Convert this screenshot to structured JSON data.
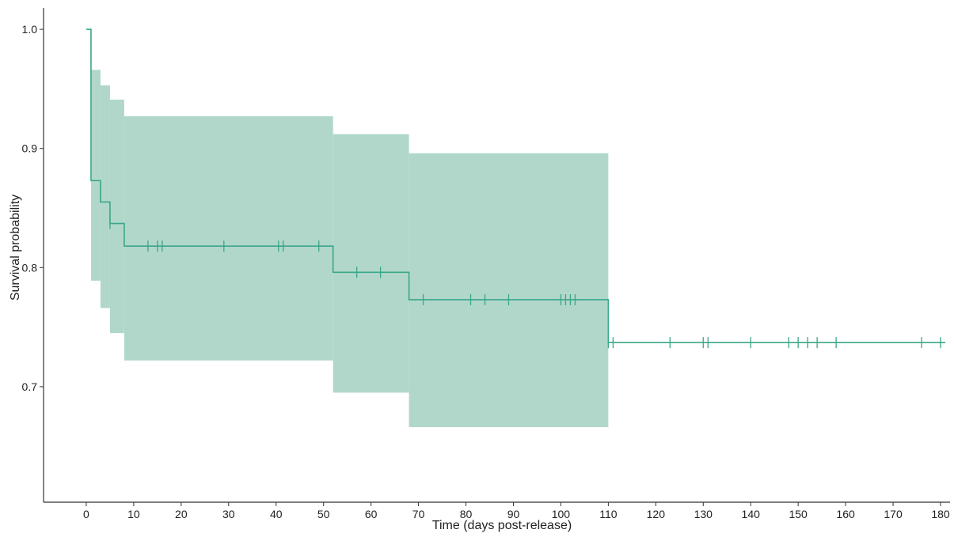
{
  "chart_data": {
    "type": "line",
    "subtype": "kaplan-meier survival curve with confidence band",
    "xlabel": "Time (days post-release)",
    "ylabel": "Survival probability",
    "xlim": [
      -9,
      182
    ],
    "ylim": [
      0.603,
      1.018
    ],
    "x_ticks": [
      0,
      10,
      20,
      30,
      40,
      50,
      60,
      70,
      80,
      90,
      100,
      110,
      120,
      130,
      140,
      150,
      160,
      170,
      180
    ],
    "y_ticks": [
      0.7,
      0.8,
      0.9,
      1.0
    ],
    "y_tick_labels": [
      "0.7",
      "0.8",
      "0.9",
      "1.0"
    ],
    "grid": false,
    "legend": "none",
    "colors": {
      "line": "#3aa688",
      "band": "#b1d7cb",
      "axis": "#333333"
    },
    "series": [
      {
        "survival_steps": [
          {
            "x": 0,
            "y": 1.0
          },
          {
            "x": 1,
            "y": 0.873
          },
          {
            "x": 3,
            "y": 0.855
          },
          {
            "x": 5,
            "y": 0.837
          },
          {
            "x": 8,
            "y": 0.818
          },
          {
            "x": 52,
            "y": 0.796
          },
          {
            "x": 68,
            "y": 0.773
          },
          {
            "x": 110,
            "y": 0.737
          }
        ],
        "end_x": 181,
        "confidence_band": [
          {
            "x0": 1,
            "x1": 3,
            "lower": 0.789,
            "upper": 0.966
          },
          {
            "x0": 3,
            "x1": 5,
            "lower": 0.766,
            "upper": 0.953
          },
          {
            "x0": 5,
            "x1": 8,
            "lower": 0.745,
            "upper": 0.941
          },
          {
            "x0": 8,
            "x1": 52,
            "lower": 0.722,
            "upper": 0.927
          },
          {
            "x0": 52,
            "x1": 68,
            "lower": 0.695,
            "upper": 0.912
          },
          {
            "x0": 68,
            "x1": 110,
            "lower": 0.666,
            "upper": 0.896
          }
        ],
        "censor_marks": [
          {
            "x": 5,
            "y": 0.837
          },
          {
            "x": 13,
            "y": 0.818
          },
          {
            "x": 15,
            "y": 0.818
          },
          {
            "x": 16,
            "y": 0.818
          },
          {
            "x": 29,
            "y": 0.818
          },
          {
            "x": 40.5,
            "y": 0.818
          },
          {
            "x": 41.5,
            "y": 0.818
          },
          {
            "x": 49,
            "y": 0.818
          },
          {
            "x": 57,
            "y": 0.796
          },
          {
            "x": 62,
            "y": 0.796
          },
          {
            "x": 71,
            "y": 0.773
          },
          {
            "x": 81,
            "y": 0.773
          },
          {
            "x": 84,
            "y": 0.773
          },
          {
            "x": 89,
            "y": 0.773
          },
          {
            "x": 100,
            "y": 0.773
          },
          {
            "x": 101,
            "y": 0.773
          },
          {
            "x": 102,
            "y": 0.773
          },
          {
            "x": 103,
            "y": 0.773
          },
          {
            "x": 110,
            "y": 0.737
          },
          {
            "x": 111,
            "y": 0.737
          },
          {
            "x": 123,
            "y": 0.737
          },
          {
            "x": 130,
            "y": 0.737
          },
          {
            "x": 131,
            "y": 0.737
          },
          {
            "x": 140,
            "y": 0.737
          },
          {
            "x": 148,
            "y": 0.737
          },
          {
            "x": 150,
            "y": 0.737
          },
          {
            "x": 152,
            "y": 0.737
          },
          {
            "x": 154,
            "y": 0.737
          },
          {
            "x": 158,
            "y": 0.737
          },
          {
            "x": 176,
            "y": 0.737
          },
          {
            "x": 180,
            "y": 0.737
          }
        ]
      }
    ]
  }
}
